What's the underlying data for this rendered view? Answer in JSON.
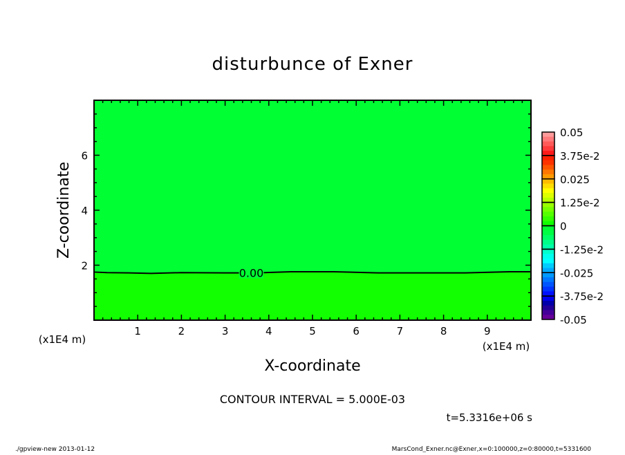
{
  "chart_data": {
    "type": "heatmap",
    "subtype": "filled-contour",
    "title": "disturbunce of Exner",
    "xlabel": "X-coordinate",
    "ylabel": "Z-coordinate",
    "x_unit": "(x1E4 m)",
    "xlim": [
      0,
      10
    ],
    "ylim": [
      0,
      8
    ],
    "x_ticks": [
      "1",
      "2",
      "3",
      "4",
      "5",
      "6",
      "7",
      "8",
      "9"
    ],
    "y_ticks": [
      "2",
      "4",
      "6"
    ],
    "regions": [
      {
        "range": [
          0,
          0.005
        ],
        "z_from": 1.75,
        "z_to": 8,
        "color": "#00ff33"
      },
      {
        "range": [
          -0.005,
          0
        ],
        "z_from": 0,
        "z_to": 1.75,
        "color": "#11ff00"
      }
    ],
    "contours": [
      {
        "level": 0.0,
        "label": "0.00",
        "x": [
          0,
          0.3,
          0.8,
          1.3,
          2.0,
          3.0,
          3.3,
          3.9,
          4.5,
          5.5,
          6.5,
          7.5,
          8.5,
          9.5,
          10
        ],
        "z": [
          1.75,
          1.73,
          1.72,
          1.7,
          1.73,
          1.72,
          1.72,
          1.73,
          1.76,
          1.76,
          1.72,
          1.72,
          1.72,
          1.76,
          1.76
        ]
      }
    ],
    "colorbar": {
      "min": -0.05,
      "max": 0.05,
      "labels": [
        "0.05",
        "3.75e-2",
        "0.025",
        "1.25e-2",
        "0",
        "-1.25e-2",
        "-0.025",
        "-3.75e-2",
        "-0.05"
      ],
      "colors": [
        "#ff9a9a",
        "#ff7a7a",
        "#ff5a5a",
        "#ff3a3a",
        "#ff1a1a",
        "#ff1f00",
        "#ff3300",
        "#ff5500",
        "#ff7700",
        "#ff9900",
        "#ffbb00",
        "#ffdd00",
        "#ffff00",
        "#ddff00",
        "#bbff00",
        "#99ff00",
        "#77ff00",
        "#55ff00",
        "#33ff00",
        "#11ff00",
        "#00ff33",
        "#00ff44",
        "#00ff66",
        "#00ff88",
        "#00ffaa",
        "#00ffcc",
        "#00ffee",
        "#00ffff",
        "#00ccff",
        "#00aaff",
        "#0099ff",
        "#0077ff",
        "#0055ff",
        "#0033ff",
        "#0011ff",
        "#0000ee",
        "#0000aa",
        "#220099",
        "#440099",
        "#660099"
      ]
    }
  },
  "annotations": {
    "contour_interval": "CONTOUR INTERVAL = 5.000E-03",
    "time": "t=5.3316e+06 s",
    "footer_left": "./gpview-new  2013-01-12",
    "footer_right": "MarsCond_Exner.nc@Exner,x=0:100000,z=0:80000,t=5331600"
  }
}
